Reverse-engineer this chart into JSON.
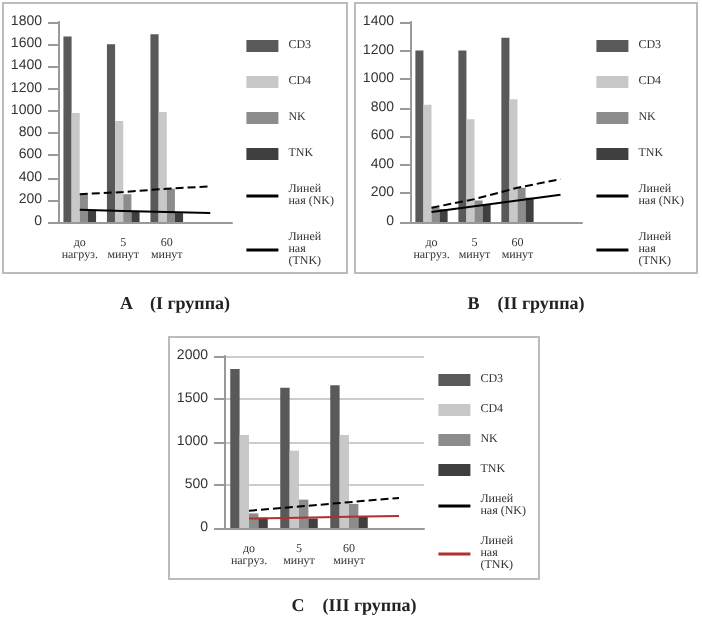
{
  "chart_data": [
    {
      "type": "bar",
      "title": "A    (I группа)",
      "categories": [
        "до нагруз.",
        "5 минут",
        "60 минут",
        null
      ],
      "ylim": [
        0,
        1800
      ],
      "yticks": [
        0,
        200,
        400,
        600,
        800,
        1000,
        1200,
        1400,
        1600,
        1800
      ],
      "grid": false,
      "legend": "right",
      "series": [
        {
          "name": "CD3",
          "color": "#595959",
          "values": [
            1670,
            1600,
            1690,
            null
          ]
        },
        {
          "name": "CD4",
          "color": "#c8c8c8",
          "values": [
            980,
            910,
            990,
            null
          ]
        },
        {
          "name": "NK",
          "color": "#8c8c8c",
          "values": [
            250,
            250,
            300,
            null
          ]
        },
        {
          "name": "TNK",
          "color": "#3f3f3f",
          "values": [
            100,
            100,
            80,
            null
          ]
        },
        {
          "name": "Линейная (NK)",
          "type": "line",
          "color": "#000000",
          "line_style": "dashed",
          "marker": "none",
          "values": [
            250,
            270,
            300,
            320
          ]
        },
        {
          "name": "Линейная (TNK)",
          "type": "line",
          "color": "#000000",
          "line_style": "solid",
          "marker": "none",
          "values": [
            110,
            100,
            90,
            80
          ]
        }
      ]
    },
    {
      "type": "bar",
      "title": "B    (II группа)",
      "categories": [
        "до нагруз.",
        "5 минут",
        "60 минут",
        null
      ],
      "ylim": [
        0,
        1400
      ],
      "yticks": [
        0,
        200,
        400,
        600,
        800,
        1000,
        1200,
        1400
      ],
      "grid": false,
      "legend": "right",
      "series": [
        {
          "name": "CD3",
          "color": "#595959",
          "values": [
            1200,
            1200,
            1290,
            null
          ]
        },
        {
          "name": "CD4",
          "color": "#c8c8c8",
          "values": [
            820,
            720,
            860,
            null
          ]
        },
        {
          "name": "NK",
          "color": "#8c8c8c",
          "values": [
            100,
            150,
            240,
            null
          ]
        },
        {
          "name": "TNK",
          "color": "#3f3f3f",
          "values": [
            90,
            120,
            170,
            null
          ]
        },
        {
          "name": "Линейная (NK)",
          "type": "line",
          "color": "#000000",
          "line_style": "dashed",
          "marker": "none",
          "values": [
            100,
            160,
            240,
            300
          ]
        },
        {
          "name": "Линейная (TNK)",
          "type": "line",
          "color": "#000000",
          "line_style": "solid",
          "marker": "none",
          "values": [
            70,
            110,
            150,
            190
          ]
        }
      ]
    },
    {
      "type": "bar",
      "title": "C    (III группа)",
      "categories": [
        "до нагруз.",
        "5 минут",
        "60 минут",
        null
      ],
      "ylim": [
        0,
        2000
      ],
      "yticks": [
        0,
        500,
        1000,
        1500,
        2000
      ],
      "grid": "y",
      "legend": "right",
      "series": [
        {
          "name": "CD3",
          "color": "#595959",
          "values": [
            1850,
            1630,
            1660,
            null
          ]
        },
        {
          "name": "CD4",
          "color": "#c8c8c8",
          "values": [
            1080,
            900,
            1080,
            null
          ]
        },
        {
          "name": "NK",
          "color": "#8c8c8c",
          "values": [
            170,
            330,
            280,
            null
          ]
        },
        {
          "name": "TNK",
          "color": "#3f3f3f",
          "values": [
            120,
            110,
            140,
            null
          ]
        },
        {
          "name": "Линейная (NK)",
          "type": "line",
          "color": "#000000",
          "line_style": "dashed",
          "marker": "none",
          "values": [
            200,
            250,
            300,
            350
          ]
        },
        {
          "name": "Линейная (TNK)",
          "type": "line",
          "color": "#b03030",
          "line_style": "solid",
          "marker": "none",
          "values": [
            110,
            120,
            130,
            140
          ]
        }
      ]
    }
  ]
}
